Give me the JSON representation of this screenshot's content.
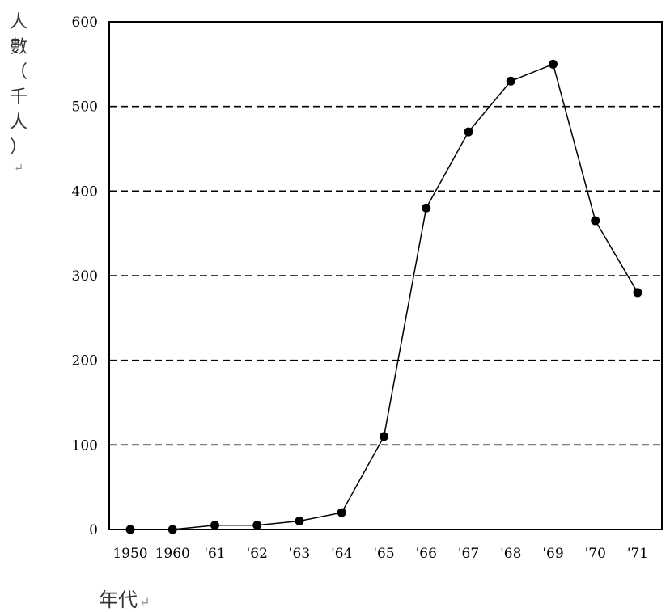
{
  "chart_data": {
    "type": "line",
    "x": [
      "1950",
      "1960",
      "'61",
      "'62",
      "'63",
      "'64",
      "'65",
      "'66",
      "'67",
      "'68",
      "'69",
      "'70",
      "'71"
    ],
    "series": [
      {
        "values": [
          0,
          0,
          5,
          5,
          10,
          20,
          110,
          380,
          470,
          530,
          550,
          365,
          280
        ]
      }
    ],
    "ylabel": "人數（千人）",
    "ylabel_mark": "↵",
    "xlabel": "年代",
    "xlabel_mark": "↵",
    "ylim": [
      0,
      600
    ],
    "yticks": [
      0,
      100,
      200,
      300,
      400,
      500,
      600
    ],
    "grid": "horizontal-dashed",
    "legend": "none",
    "line_color": "#000000",
    "marker_color": "#000000"
  }
}
